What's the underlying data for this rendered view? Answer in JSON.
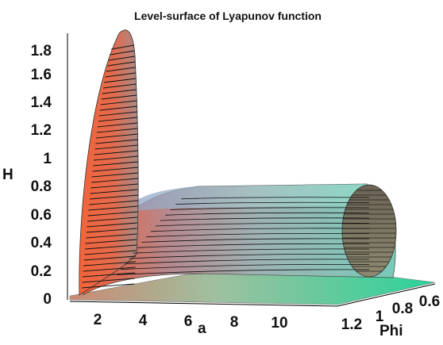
{
  "chart_data": {
    "type": "surface",
    "title": "Level-surface of Lyapunov function",
    "axes": {
      "a": {
        "label": "a",
        "ticks": [
          "2",
          "4",
          "6",
          "8",
          "10"
        ],
        "range": [
          1,
          12
        ]
      },
      "phi": {
        "label": "Phi",
        "ticks": [
          "1.2",
          "1",
          "0.8",
          "0.6"
        ],
        "range": [
          0.6,
          1.2
        ]
      },
      "h": {
        "label": "H",
        "ticks": [
          "0",
          "0.2",
          "0.4",
          "0.6",
          "0.8",
          "1",
          "1.2",
          "1.4",
          "1.6",
          "1.8"
        ],
        "range": [
          0,
          1.9
        ]
      }
    },
    "colors": {
      "shell_warm": "#f05a32",
      "shell_mid": "#b08a8f",
      "shell_cool": "#6cc3b5",
      "floor": "#2bd39a",
      "contour": "#111111"
    }
  }
}
